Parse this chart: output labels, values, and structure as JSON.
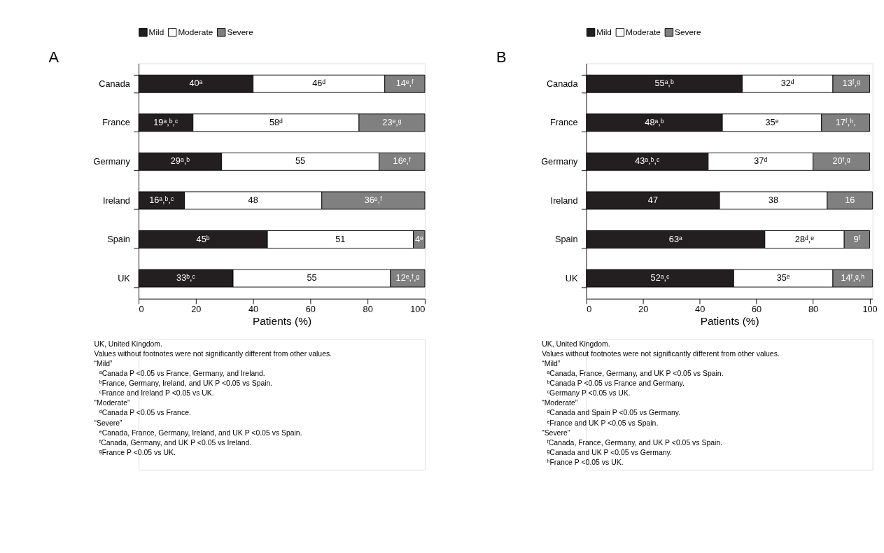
{
  "chart_data": [
    {
      "type": "bar",
      "orientation": "horizontal",
      "stacked": true,
      "title": "A",
      "xlabel": "Patients (%)",
      "legend": "top",
      "grid": false,
      "categories": [
        "Canada",
        "France",
        "Germany",
        "Ireland",
        "Spain",
        "UK"
      ],
      "xlim": [
        0,
        100
      ],
      "xticks": [
        0,
        20,
        40,
        60,
        80,
        100
      ],
      "series": [
        {
          "name": "Mild",
          "color": "#231f20",
          "values": [
            40,
            19,
            29,
            16,
            45,
            33
          ],
          "value_labels": [
            "40ᵃ",
            "19ᵃ,ᵇ,ᶜ",
            "29ᵃ,ᵇ",
            "16ᵃ,ᵇ,ᶜ",
            "45ᵇ",
            "33ᵇ,ᶜ"
          ]
        },
        {
          "name": "Moderate",
          "color": "#ffffff",
          "values": [
            46,
            58,
            55,
            48,
            51,
            55
          ],
          "value_labels": [
            "46ᵈ",
            "58ᵈ",
            "55",
            "48",
            "51",
            "55"
          ]
        },
        {
          "name": "Severe",
          "color": "#808080",
          "values": [
            14,
            23,
            16,
            36,
            4,
            12
          ],
          "value_labels": [
            "14ᵉ,ᶠ",
            "23ᵉ,ᵍ",
            "16ᵉ,ᶠ",
            "36ᵉ,ᶠ",
            "4ᵉ",
            "12ᵉ,ᶠ,ᵍ"
          ]
        }
      ],
      "annotations": [
        "UK, United Kingdom.",
        "Values without footnotes were not significantly different from other values.",
        "“Mild”",
        "ᵃCanada P <0.05 vs France, Germany, and Ireland.",
        "ᵇFrance, Germany, Ireland, and UK P <0.05 vs Spain.",
        "ᶜFrance and Ireland P <0.05 vs UK.",
        "“Moderate”",
        "ᵈCanada P <0.05 vs France.",
        "“Severe”",
        "ᵉCanada, France, Germany, Ireland, and UK P <0.05 vs Spain.",
        "ᶠCanada, Germany, and UK P <0.05 vs Ireland.",
        "ᵍFrance P <0.05 vs UK."
      ]
    },
    {
      "type": "bar",
      "orientation": "horizontal",
      "stacked": true,
      "title": "B",
      "xlabel": "Patients (%)",
      "legend": "top",
      "grid": false,
      "categories": [
        "Canada",
        "France",
        "Germany",
        "Ireland",
        "Spain",
        "UK"
      ],
      "xlim": [
        0,
        101
      ],
      "xticks": [
        0,
        20,
        40,
        60,
        80,
        100
      ],
      "series": [
        {
          "name": "Mild",
          "color": "#231f20",
          "values": [
            55,
            48,
            43,
            47,
            63,
            52
          ],
          "value_labels": [
            "55ᵃ,ᵇ",
            "48ᵃ,ᵇ",
            "43ᵃ,ᵇ,ᶜ",
            "47",
            "63ᵃ",
            "52ᵃ,ᶜ"
          ]
        },
        {
          "name": "Moderate",
          "color": "#ffffff",
          "values": [
            32,
            35,
            37,
            38,
            28,
            35
          ],
          "value_labels": [
            "32ᵈ",
            "35ᵉ",
            "37ᵈ",
            "38",
            "28ᵈ,ᵉ",
            "35ᵉ"
          ]
        },
        {
          "name": "Severe",
          "color": "#808080",
          "values": [
            13,
            17,
            20,
            16,
            9,
            14
          ],
          "value_labels": [
            "13ᶠ,ᵍ",
            "17ᶠ,ʰ,",
            "20ᶠ,ᵍ",
            "16",
            "9ᶠ",
            "14ᶠ,ᵍ,ʰ"
          ]
        }
      ],
      "annotations": [
        "UK, United Kingdom.",
        "Values without footnotes were not significantly different from other values.",
        "“Mild”",
        "ᵃCanada, France, Germany, and UK P <0.05 vs Spain.",
        "ᵇCanada P <0.05 vs France and Germany.",
        "ᶜGermany P <0.05 vs UK.",
        "“Moderate”",
        "ᵈCanada and Spain P <0.05 vs Germany.",
        "ᵉFrance and UK P <0.05 vs Spain.",
        "“Severe”",
        "ᶠCanada, France, Germany, and UK P <0.05 vs Spain.",
        "ᵍCanada and UK P <0.05 vs Germany.",
        "ʰFrance P <0.05 vs UK."
      ]
    }
  ]
}
